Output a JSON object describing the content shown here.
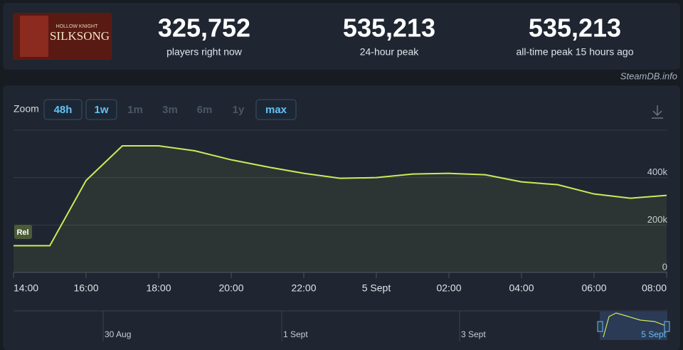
{
  "header": {
    "game_logo": {
      "top": "HOLLOW KNIGHT",
      "bottom": "SILKSONG"
    },
    "stats": [
      {
        "value": "325,752",
        "label": "players right now"
      },
      {
        "value": "535,213",
        "label": "24-hour peak"
      },
      {
        "value": "535,213",
        "label": "all-time peak 15 hours ago"
      }
    ],
    "source": "SteamDB.info"
  },
  "zoom": {
    "label": "Zoom",
    "options": [
      "48h",
      "1w",
      "1m",
      "3m",
      "6m",
      "1y",
      "max"
    ],
    "active": [
      "48h",
      "1w",
      "max"
    ]
  },
  "chart_data": {
    "type": "line",
    "categories": [
      "14:00",
      null,
      "16:00",
      null,
      "18:00",
      null,
      "20:00",
      null,
      "22:00",
      null,
      "5 Sept",
      null,
      "02:00",
      null,
      "04:00",
      null,
      "06:00",
      null,
      "08:00"
    ],
    "series": [
      {
        "name": "Players",
        "color": "#cfe85a",
        "values": [
          113000,
          113000,
          388000,
          534000,
          534000,
          513000,
          475000,
          445000,
          418000,
          397000,
          400000,
          415000,
          418000,
          412000,
          382000,
          370000,
          331000,
          313000,
          325000
        ]
      }
    ],
    "ylim": [
      0,
      600000
    ],
    "yticks": [
      {
        "value": 0,
        "label": "0"
      },
      {
        "value": 200000,
        "label": "200k"
      },
      {
        "value": 400000,
        "label": "400k"
      }
    ],
    "grid": true,
    "annotations": [
      {
        "category": "14:00",
        "text": "Rel"
      }
    ],
    "navigator": [
      "30 Aug",
      "1 Sept",
      "3 Sept",
      "5 Sept"
    ]
  }
}
